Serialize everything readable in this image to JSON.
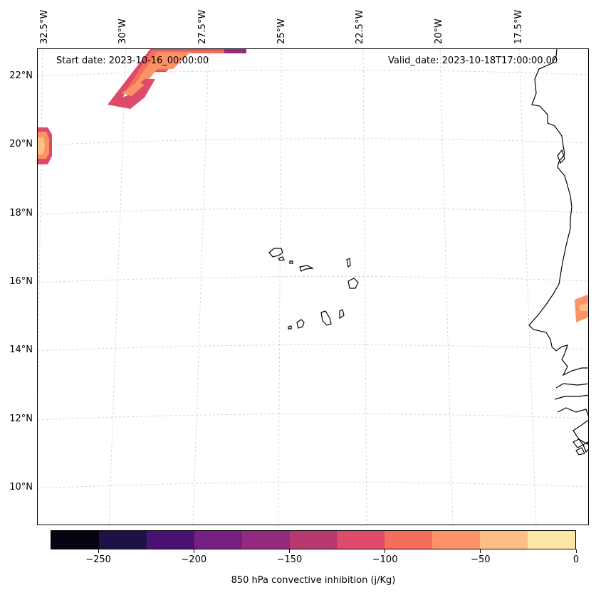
{
  "map": {
    "start_date_text": "Start date: 2023-10-16_00:00:00",
    "valid_date_text": "Valid_date: 2023-10-18T17:00:00.00",
    "longitude_labels": [
      "32.5°W",
      "30°W",
      "27.5°W",
      "25°W",
      "22.5°W",
      "20°W",
      "17.5°W"
    ],
    "latitude_labels": [
      "22°N",
      "20°N",
      "18°N",
      "16°N",
      "14°N",
      "12°N",
      "10°N"
    ],
    "extent": {
      "lon_min": -32.6,
      "lon_max": -16.6,
      "lat_min": 8.9,
      "lat_max": 22.8
    },
    "variable": "850 hPa convective inhibition (j/Kg)"
  },
  "colorbar": {
    "label": "850 hPa convective inhibition (j/Kg)",
    "tick_labels": [
      "−250",
      "−200",
      "−150",
      "−100",
      "−50",
      "0"
    ],
    "tick_values": [
      -250,
      -200,
      -150,
      -100,
      -50,
      0
    ],
    "range": [
      -275,
      0
    ],
    "colors": [
      "#05030f",
      "#1f1146",
      "#4b1275",
      "#751f80",
      "#952b80",
      "#b9386e",
      "#dd4a6a",
      "#f36f5b",
      "#fc9366",
      "#febf84",
      "#fce7a7"
    ]
  },
  "colors": {
    "grid": "#cccccc",
    "coastline": "#000000",
    "frame": "#000000"
  }
}
